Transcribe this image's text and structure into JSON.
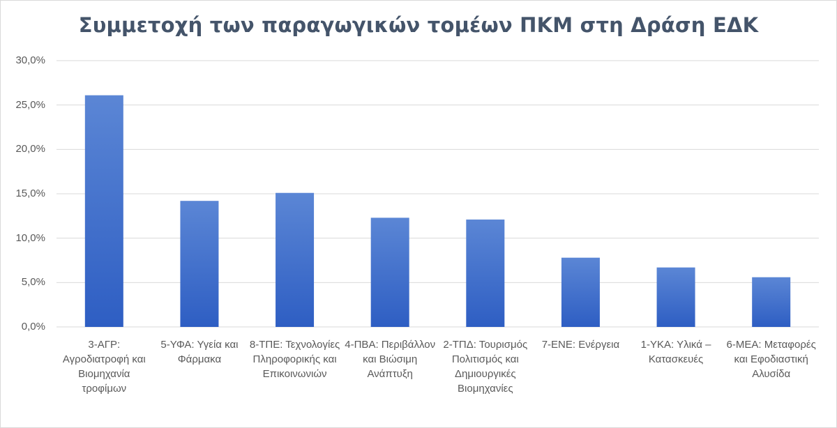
{
  "chart_data": {
    "type": "bar",
    "title": "Συμμετοχή των παραγωγικών τομέων ΠΚΜ στη Δράση ΕΔΚ",
    "xlabel": "",
    "ylabel": "",
    "ylim": [
      0,
      30
    ],
    "yticks": [
      0,
      5,
      10,
      15,
      20,
      25,
      30
    ],
    "ytick_labels": [
      "0,0%",
      "5,0%",
      "10,0%",
      "15,0%",
      "20,0%",
      "25,0%",
      "30,0%"
    ],
    "grid": true,
    "legend": "none",
    "categories": [
      "3-ΑΓΡ: Αγροδιατροφή και Βιομηχανία τροφίμων",
      "5-ΥΦΑ: Υγεία και Φάρμακα",
      "8-ΤΠΕ: Τεχνολογίες Πληροφορικής και Επικοινωνιών",
      "4-ΠΒΑ: Περιβάλλον και Βιώσιμη Ανάπτυξη",
      "2-ΤΠΔ: Τουρισμός Πολιτισμός και Δημιουργικές Βιομηχανίες",
      "7-ΕΝΕ: Ενέργεια",
      "1-ΥΚΑ: Υλικά – Κατασκευές",
      "6-ΜΕΑ: Μεταφορές και Εφοδιαστική Αλυσίδα"
    ],
    "values": [
      26.1,
      14.2,
      15.1,
      12.3,
      12.1,
      7.8,
      6.7,
      5.6
    ],
    "bar_color_top": "#5b86d5",
    "bar_color_bottom": "#2e5ec3"
  }
}
